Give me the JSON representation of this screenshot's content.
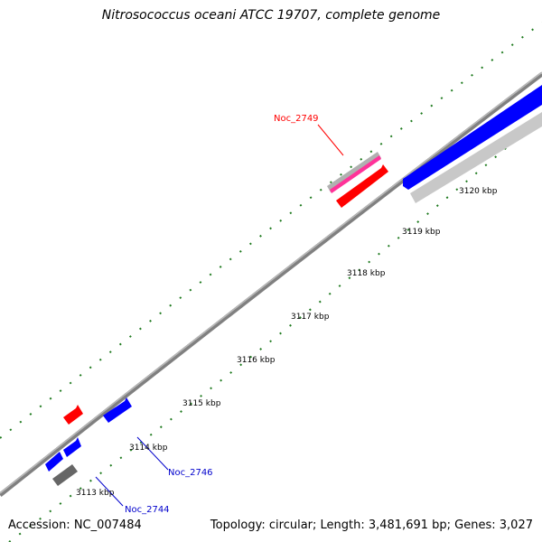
{
  "title": "Nitrosococcus oceani ATCC 19707, complete genome",
  "footer": {
    "accession": "Accession: NC_007484",
    "summary": "Topology: circular; Length: 3,481,691 bp; Genes: 3,027"
  },
  "scale_labels": [
    "3113 kbp",
    "3114 kbp",
    "3115 kbp",
    "3116 kbp",
    "3117 kbp",
    "3118 kbp",
    "3119 kbp",
    "3120 kbp"
  ],
  "gene_callouts": [
    {
      "label": "Noc_2749",
      "color": "#ff0000"
    },
    {
      "label": "Noc_2746",
      "color": "#0000cc"
    },
    {
      "label": "Noc_2744",
      "color": "#0000cc"
    }
  ],
  "colors": {
    "backbone": "#808080",
    "gc_ticks": "#1e7a1e",
    "forward_cds": "#ff0000",
    "reverse_cds": "#0000ff",
    "other_feature": "#666666",
    "misc_feature": "#c0c0c0",
    "pink_feature": "#ff3399"
  }
}
